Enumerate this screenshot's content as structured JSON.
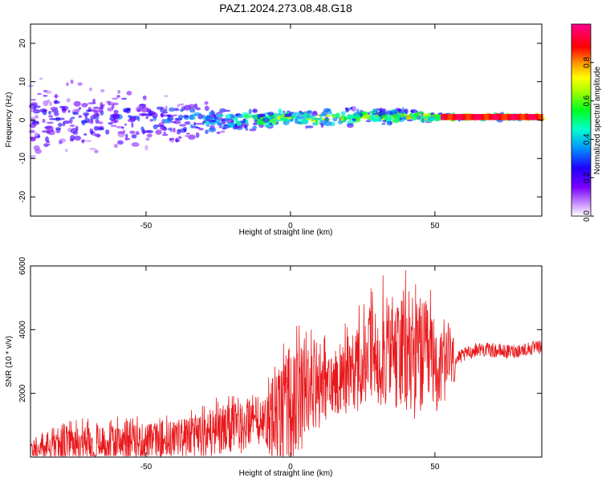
{
  "figure_title": "PAZ1.2024.273.08.48.G18",
  "chart_data": [
    {
      "type": "heatmap",
      "title": "PAZ1.2024.273.08.48.G18",
      "xlabel": "Height of straight line (km)",
      "ylabel": "Frequency (Hz)",
      "xlim": [
        -90,
        87
      ],
      "ylim": [
        -25,
        25
      ],
      "x_ticks": [
        -50,
        0,
        50
      ],
      "y_ticks": [
        -20,
        -10,
        0,
        10,
        20
      ],
      "colorbar": {
        "label": "Normalized spectral amplitude",
        "range": [
          0,
          1
        ],
        "ticks": [
          "0.0",
          "0.2",
          "0.4",
          "0.6",
          "0.8"
        ],
        "colormap": "rainbow (purple-blue-cyan-green-yellow-red-magenta)"
      },
      "description_points": [
        {
          "height_km": -80,
          "freq_center_hz": 0,
          "freq_spread_hz": 10,
          "amplitude": 0.25
        },
        {
          "height_km": -50,
          "freq_center_hz": 0,
          "freq_spread_hz": 7,
          "amplitude": 0.3
        },
        {
          "height_km": -20,
          "freq_center_hz": 0,
          "freq_spread_hz": 3,
          "amplitude": 0.45
        },
        {
          "height_km": 0,
          "freq_center_hz": 0.5,
          "freq_spread_hz": 2,
          "amplitude": 0.7
        },
        {
          "height_km": 30,
          "freq_center_hz": 1.0,
          "freq_spread_hz": 2,
          "amplitude": 0.6
        },
        {
          "height_km": 60,
          "freq_center_hz": 0.8,
          "freq_spread_hz": 0.6,
          "amplitude": 0.95
        },
        {
          "height_km": 87,
          "freq_center_hz": 0.8,
          "freq_spread_hz": 0.6,
          "amplitude": 0.95
        }
      ]
    },
    {
      "type": "line",
      "xlabel": "Height of straight line (km)",
      "ylabel": "SNR (10 * v/v)",
      "xlim": [
        -90,
        87
      ],
      "ylim": [
        0,
        6000
      ],
      "x_ticks": [
        -50,
        0,
        50
      ],
      "y_ticks": [
        2000,
        4000,
        6000
      ],
      "color": "#e8191c",
      "series": [
        {
          "envelope_x": [
            -90,
            -75,
            -60,
            -45,
            -30,
            -20,
            -10,
            -2,
            5,
            15,
            25,
            32,
            40,
            47,
            52,
            56,
            60,
            65,
            75,
            87
          ],
          "envelope_mean": [
            220,
            330,
            430,
            520,
            680,
            850,
            1050,
            1250,
            1900,
            2300,
            2800,
            3300,
            3000,
            3100,
            2700,
            3000,
            3200,
            3400,
            3300,
            3450
          ],
          "envelope_peak": [
            650,
            1200,
            1300,
            1400,
            1700,
            2150,
            2050,
            4300,
            4200,
            3800,
            4900,
            5950,
            5900,
            5900,
            4600,
            4400,
            3800,
            3700,
            3800,
            3900
          ]
        }
      ]
    }
  ]
}
